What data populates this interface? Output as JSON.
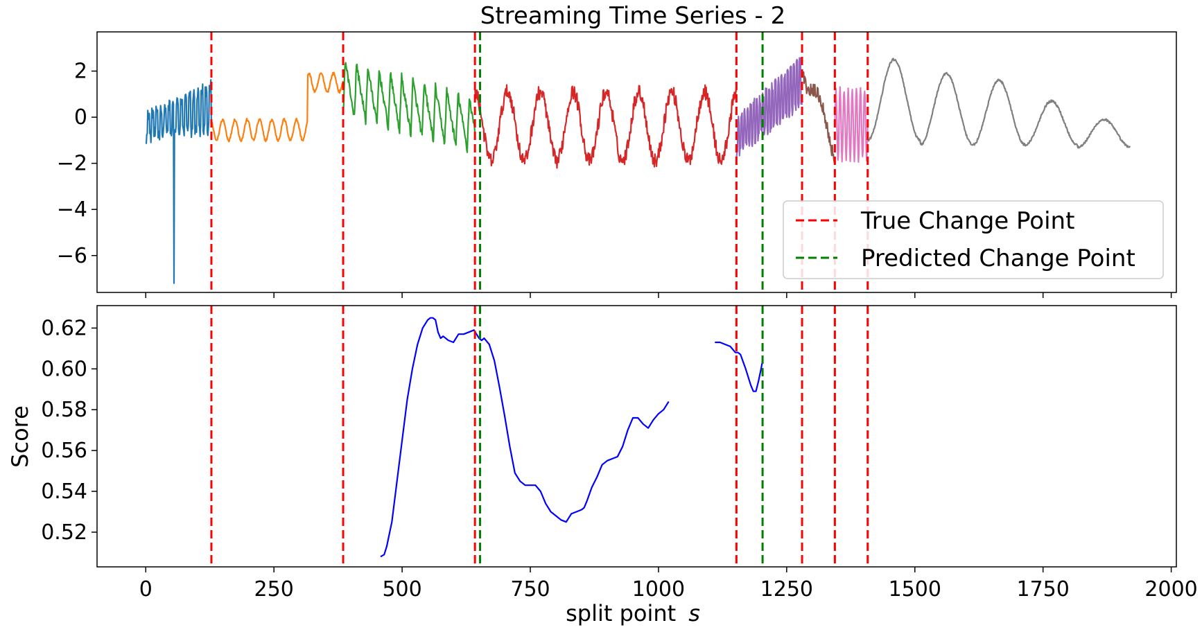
{
  "chart_data": [
    {
      "type": "line",
      "title": "Streaming Time Series - 2",
      "xlabel": "",
      "ylabel": "",
      "xlim": [
        -95,
        2010
      ],
      "ylim": [
        -7.6,
        3.7
      ],
      "yticks": [
        2,
        0,
        -2,
        -4,
        -6
      ],
      "ytick_labels": [
        "2",
        "0",
        "−2",
        "−4",
        "−6"
      ],
      "xticks": [
        0,
        250,
        500,
        750,
        1000,
        1250,
        1500,
        1750,
        2000
      ],
      "segments": [
        {
          "name": "segment-1",
          "color": "#1f77b4",
          "start": 0,
          "end": 128,
          "pattern": "spiky-fast",
          "amplitude_low": -1.1,
          "amplitude_high": 1.5,
          "outlier": {
            "x": 55,
            "y": -7.2
          }
        },
        {
          "name": "segment-2",
          "color": "#ff7f0e",
          "start": 128,
          "end": 385,
          "pattern": "oscillating-step",
          "levels": [
            {
              "until": 315,
              "center": -0.55,
              "amplitude": 0.45
            },
            {
              "until": 385,
              "center": 1.5,
              "amplitude": 0.4
            }
          ]
        },
        {
          "name": "segment-3",
          "color": "#2ca02c",
          "start": 385,
          "end": 642,
          "pattern": "sawtooth-decaying",
          "start_high": 2.5,
          "end_low": -1.8
        },
        {
          "name": "segment-4",
          "color": "#d62728",
          "start": 642,
          "end": 1152,
          "pattern": "noisy-wave",
          "center": -0.4,
          "amplitude": 1.5
        },
        {
          "name": "segment-5",
          "color": "#9467bd",
          "start": 1152,
          "end": 1280,
          "pattern": "spiky-rising",
          "start_center": -1.0,
          "end_center": 1.2
        },
        {
          "name": "segment-6",
          "color": "#8c564b",
          "start": 1280,
          "end": 1344,
          "pattern": "noisy-decline",
          "start_high": 2.3,
          "end_low": -1.3
        },
        {
          "name": "segment-7",
          "color": "#e377c2",
          "start": 1344,
          "end": 1408,
          "pattern": "fast-oscillation",
          "center": -0.3,
          "amplitude": 1.5
        },
        {
          "name": "segment-8",
          "color": "#7f7f7f",
          "start": 1408,
          "end": 1920,
          "pattern": "smooth-decaying-wave",
          "peaks": [
            2.5,
            1.9,
            1.6,
            0.7,
            -0.1
          ],
          "troughs": [
            -1.0,
            -1.2,
            -1.2,
            -1.2,
            -1.3
          ]
        }
      ],
      "true_change_points": [
        128,
        385,
        642,
        1152,
        1280,
        1344,
        1408
      ],
      "predicted_change_points": [
        652,
        1203
      ],
      "legend": {
        "position": "lower-right",
        "entries": [
          {
            "label": "True Change Point",
            "color": "#ff0000"
          },
          {
            "label": "Predicted Change Point",
            "color": "#008000"
          }
        ]
      }
    },
    {
      "type": "line",
      "title": "",
      "xlabel": "split point  s",
      "xlabel_main": "split point",
      "xlabel_var": "s",
      "ylabel": "Score",
      "xlim": [
        -95,
        2010
      ],
      "ylim": [
        0.503,
        0.631
      ],
      "yticks": [
        0.52,
        0.54,
        0.56,
        0.58,
        0.6,
        0.62
      ],
      "ytick_labels": [
        "0.52",
        "0.54",
        "0.56",
        "0.58",
        "0.60",
        "0.62"
      ],
      "xticks": [
        0,
        250,
        500,
        750,
        1000,
        1250,
        1500,
        1750,
        2000
      ],
      "xtick_labels": [
        "0",
        "250",
        "500",
        "750",
        "1000",
        "1250",
        "1500",
        "1750",
        "2000"
      ],
      "series": [
        {
          "name": "score",
          "color": "#0000ff",
          "x": [
            458,
            465,
            470,
            480,
            490,
            500,
            510,
            520,
            530,
            540,
            550,
            555,
            560,
            565,
            570,
            575,
            580,
            590,
            600,
            610,
            620,
            630,
            640,
            645,
            650,
            655,
            660,
            670,
            680,
            690,
            700,
            710,
            720,
            730,
            740,
            750,
            760,
            770,
            780,
            790,
            800,
            810,
            820,
            830,
            840,
            850,
            855,
            860,
            870,
            880,
            890,
            900,
            910,
            920,
            930,
            940,
            950,
            960,
            970,
            980,
            990,
            1000,
            1010,
            1020
          ],
          "y": [
            0.508,
            0.509,
            0.513,
            0.525,
            0.545,
            0.565,
            0.585,
            0.6,
            0.612,
            0.62,
            0.624,
            0.625,
            0.625,
            0.624,
            0.618,
            0.615,
            0.616,
            0.614,
            0.613,
            0.617,
            0.617,
            0.618,
            0.619,
            0.617,
            0.615,
            0.614,
            0.615,
            0.612,
            0.604,
            0.591,
            0.577,
            0.562,
            0.549,
            0.545,
            0.543,
            0.543,
            0.543,
            0.54,
            0.534,
            0.53,
            0.528,
            0.526,
            0.525,
            0.529,
            0.53,
            0.531,
            0.532,
            0.535,
            0.542,
            0.547,
            0.553,
            0.555,
            0.556,
            0.557,
            0.562,
            0.57,
            0.576,
            0.576,
            0.573,
            0.571,
            0.575,
            0.578,
            0.58,
            0.584
          ]
        },
        {
          "name": "score-2",
          "color": "#0000ff",
          "x": [
            1110,
            1120,
            1130,
            1140,
            1150,
            1155,
            1160,
            1170,
            1180,
            1185,
            1190,
            1195,
            1200,
            1203
          ],
          "y": [
            0.613,
            0.613,
            0.612,
            0.611,
            0.608,
            0.608,
            0.607,
            0.6,
            0.592,
            0.589,
            0.589,
            0.594,
            0.6,
            0.604
          ]
        }
      ],
      "true_change_points": [
        128,
        385,
        642,
        1152,
        1280,
        1344,
        1408
      ],
      "predicted_change_points": [
        652,
        1203
      ]
    }
  ]
}
